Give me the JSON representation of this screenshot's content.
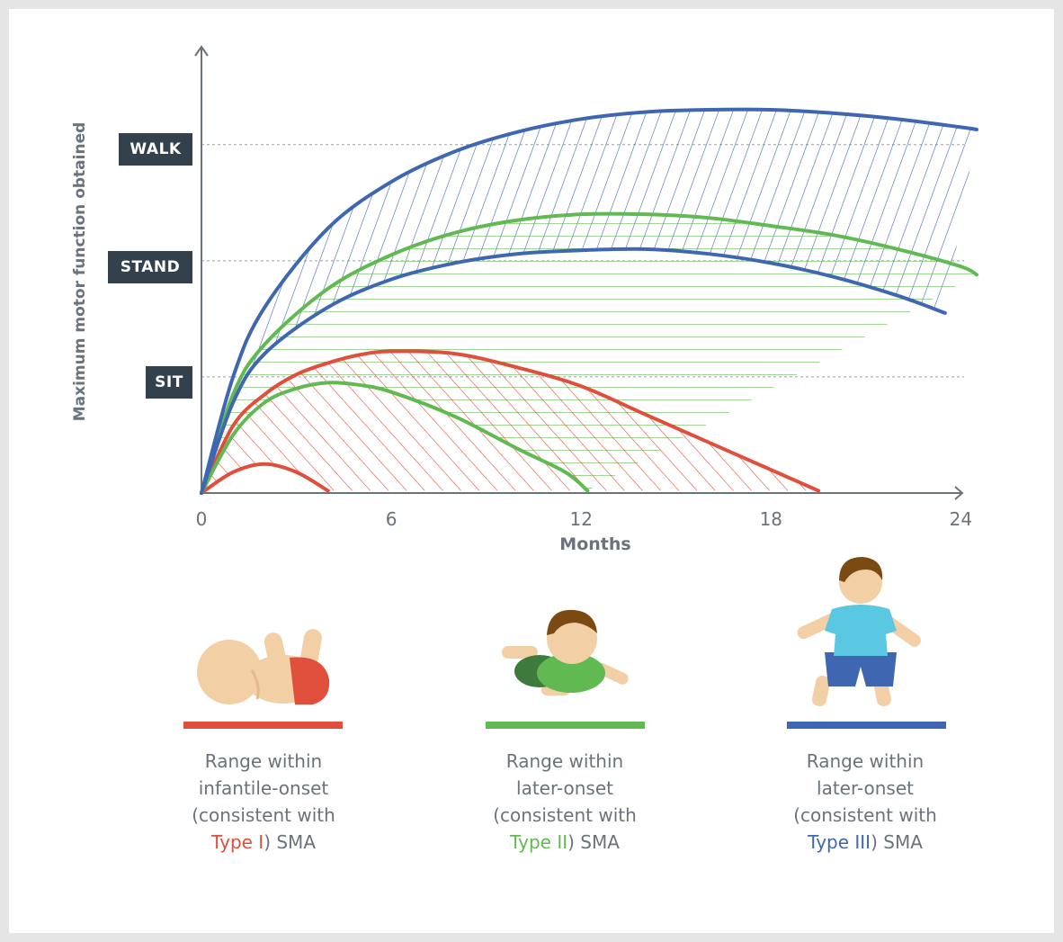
{
  "chart_data": {
    "type": "line",
    "x_axis": {
      "label": "Months",
      "ticks": [
        0,
        6,
        12,
        18,
        24
      ],
      "range": [
        0,
        24.5
      ]
    },
    "y_axis": {
      "label": "Maximum motor function obtained",
      "milestones": [
        {
          "label": "WALK",
          "value": 3
        },
        {
          "label": "STAND",
          "value": 2
        },
        {
          "label": "SIT",
          "value": 1
        }
      ],
      "range": [
        0,
        3.3
      ]
    },
    "gridlines_at_milestones": true,
    "series": [
      {
        "group": "Type I",
        "color": "#e04e3c",
        "role": "lower bound",
        "points": [
          [
            0,
            0
          ],
          [
            1,
            0.18
          ],
          [
            2,
            0.25
          ],
          [
            3,
            0.18
          ],
          [
            4,
            0.02
          ]
        ]
      },
      {
        "group": "Type I",
        "color": "#e04e3c",
        "role": "upper bound",
        "points": [
          [
            0,
            0
          ],
          [
            1,
            0.58
          ],
          [
            2,
            0.85
          ],
          [
            3,
            1.02
          ],
          [
            4,
            1.12
          ],
          [
            5,
            1.19
          ],
          [
            6,
            1.22
          ],
          [
            8,
            1.2
          ],
          [
            10,
            1.08
          ],
          [
            12,
            0.92
          ],
          [
            14,
            0.68
          ],
          [
            16,
            0.44
          ],
          [
            18,
            0.2
          ],
          [
            19.5,
            0.02
          ]
        ]
      },
      {
        "group": "Type II",
        "color": "#61b951",
        "role": "lower bound",
        "points": [
          [
            0,
            0
          ],
          [
            1,
            0.5
          ],
          [
            2,
            0.78
          ],
          [
            3,
            0.9
          ],
          [
            4,
            0.95
          ],
          [
            5,
            0.93
          ],
          [
            6,
            0.87
          ],
          [
            8,
            0.66
          ],
          [
            10,
            0.38
          ],
          [
            11.5,
            0.18
          ],
          [
            12.2,
            0.02
          ]
        ]
      },
      {
        "group": "Type II",
        "color": "#61b951",
        "role": "upper bound",
        "points": [
          [
            0,
            0
          ],
          [
            1,
            0.85
          ],
          [
            2,
            1.28
          ],
          [
            4,
            1.76
          ],
          [
            6,
            2.05
          ],
          [
            8,
            2.24
          ],
          [
            10,
            2.35
          ],
          [
            12,
            2.4
          ],
          [
            14,
            2.4
          ],
          [
            16,
            2.37
          ],
          [
            18,
            2.3
          ],
          [
            20,
            2.22
          ],
          [
            22,
            2.1
          ],
          [
            24,
            1.95
          ],
          [
            24.5,
            1.88
          ]
        ]
      },
      {
        "group": "Type III",
        "color": "#3f67b1",
        "role": "lower bound",
        "points": [
          [
            0,
            0
          ],
          [
            1,
            0.78
          ],
          [
            2,
            1.2
          ],
          [
            4,
            1.6
          ],
          [
            6,
            1.84
          ],
          [
            8,
            1.98
          ],
          [
            10,
            2.06
          ],
          [
            12,
            2.09
          ],
          [
            14,
            2.1
          ],
          [
            16,
            2.06
          ],
          [
            18,
            1.98
          ],
          [
            20,
            1.86
          ],
          [
            22,
            1.7
          ],
          [
            23.5,
            1.55
          ]
        ]
      },
      {
        "group": "Type III",
        "color": "#3f67b1",
        "role": "upper bound",
        "points": [
          [
            0,
            0
          ],
          [
            1,
            1.0
          ],
          [
            2,
            1.6
          ],
          [
            4,
            2.28
          ],
          [
            6,
            2.68
          ],
          [
            8,
            2.94
          ],
          [
            10,
            3.11
          ],
          [
            12,
            3.22
          ],
          [
            14,
            3.28
          ],
          [
            16,
            3.3
          ],
          [
            18,
            3.3
          ],
          [
            20,
            3.27
          ],
          [
            22,
            3.22
          ],
          [
            24,
            3.15
          ],
          [
            24.5,
            3.13
          ]
        ]
      }
    ]
  },
  "legend": [
    {
      "color": "#e04e3c",
      "icon": "lying-baby-icon",
      "line1": "Range within",
      "line2": "infantile-onset",
      "line3": "(consistent with",
      "type_label": "Type I",
      "suffix": ") SMA"
    },
    {
      "color": "#61b951",
      "icon": "crawling-toddler-icon",
      "line1": "Range within",
      "line2": "later-onset",
      "line3": "(consistent with",
      "type_label": "Type II",
      "suffix": ") SMA"
    },
    {
      "color": "#3f67b1",
      "icon": "walking-child-icon",
      "line1": "Range within",
      "line2": "later-onset",
      "line3": "(consistent with",
      "type_label": "Type III",
      "suffix": ") SMA"
    }
  ]
}
